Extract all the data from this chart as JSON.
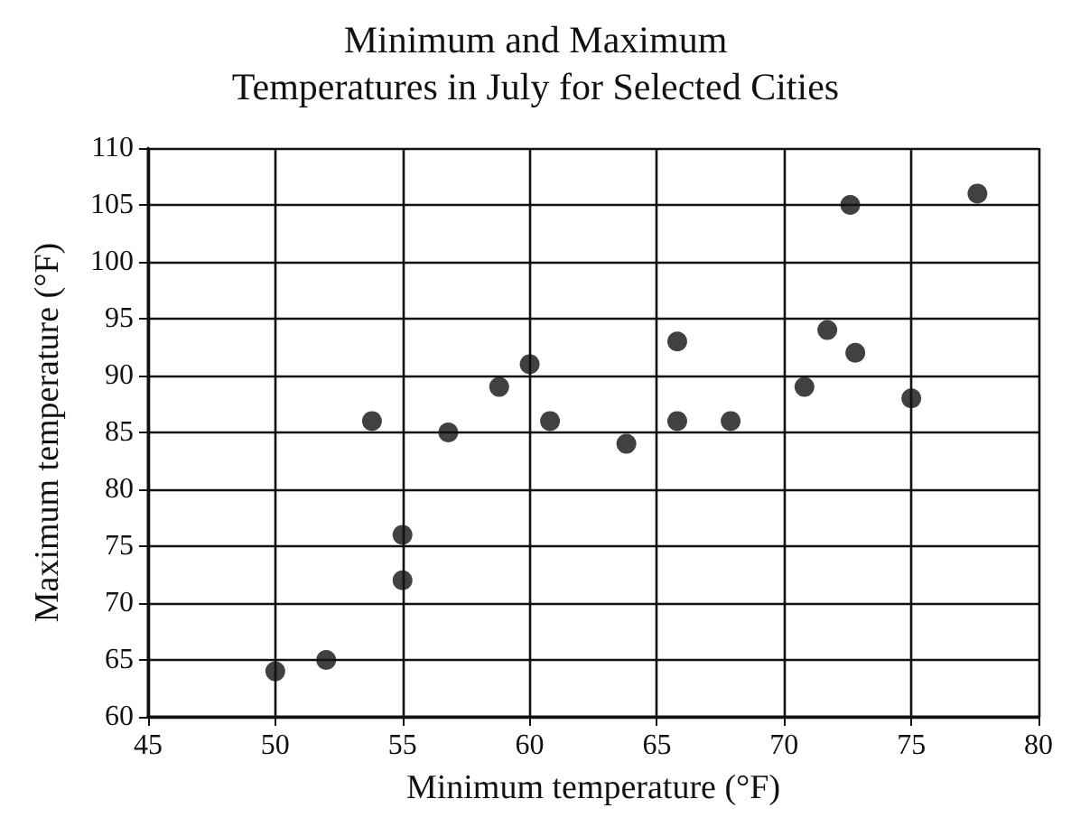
{
  "chart_data": {
    "type": "scatter",
    "title": "Minimum and Maximum\nTemperatures in July for Selected Cities",
    "xlabel": "Minimum temperature (°F)",
    "ylabel": "Maximum temperature (°F)",
    "x": [
      50,
      52,
      53.8,
      55,
      55,
      56.8,
      58.8,
      60,
      60.8,
      63.8,
      65.8,
      65.8,
      67.9,
      70.8,
      71.7,
      72.8,
      72.6,
      75,
      77.6
    ],
    "values": [
      64,
      65,
      86,
      76,
      72,
      85,
      89,
      91,
      86,
      84,
      93,
      86,
      86,
      89,
      94,
      92,
      105,
      88,
      106
    ],
    "color": "#111111",
    "marker": "circle",
    "grid": true,
    "xlim": [
      45,
      80
    ],
    "xticks": [
      45,
      50,
      55,
      60,
      65,
      70,
      75,
      80
    ],
    "ylim": [
      60,
      110
    ],
    "yticks": [
      60,
      65,
      70,
      75,
      80,
      85,
      90,
      95,
      100,
      105,
      110
    ]
  }
}
